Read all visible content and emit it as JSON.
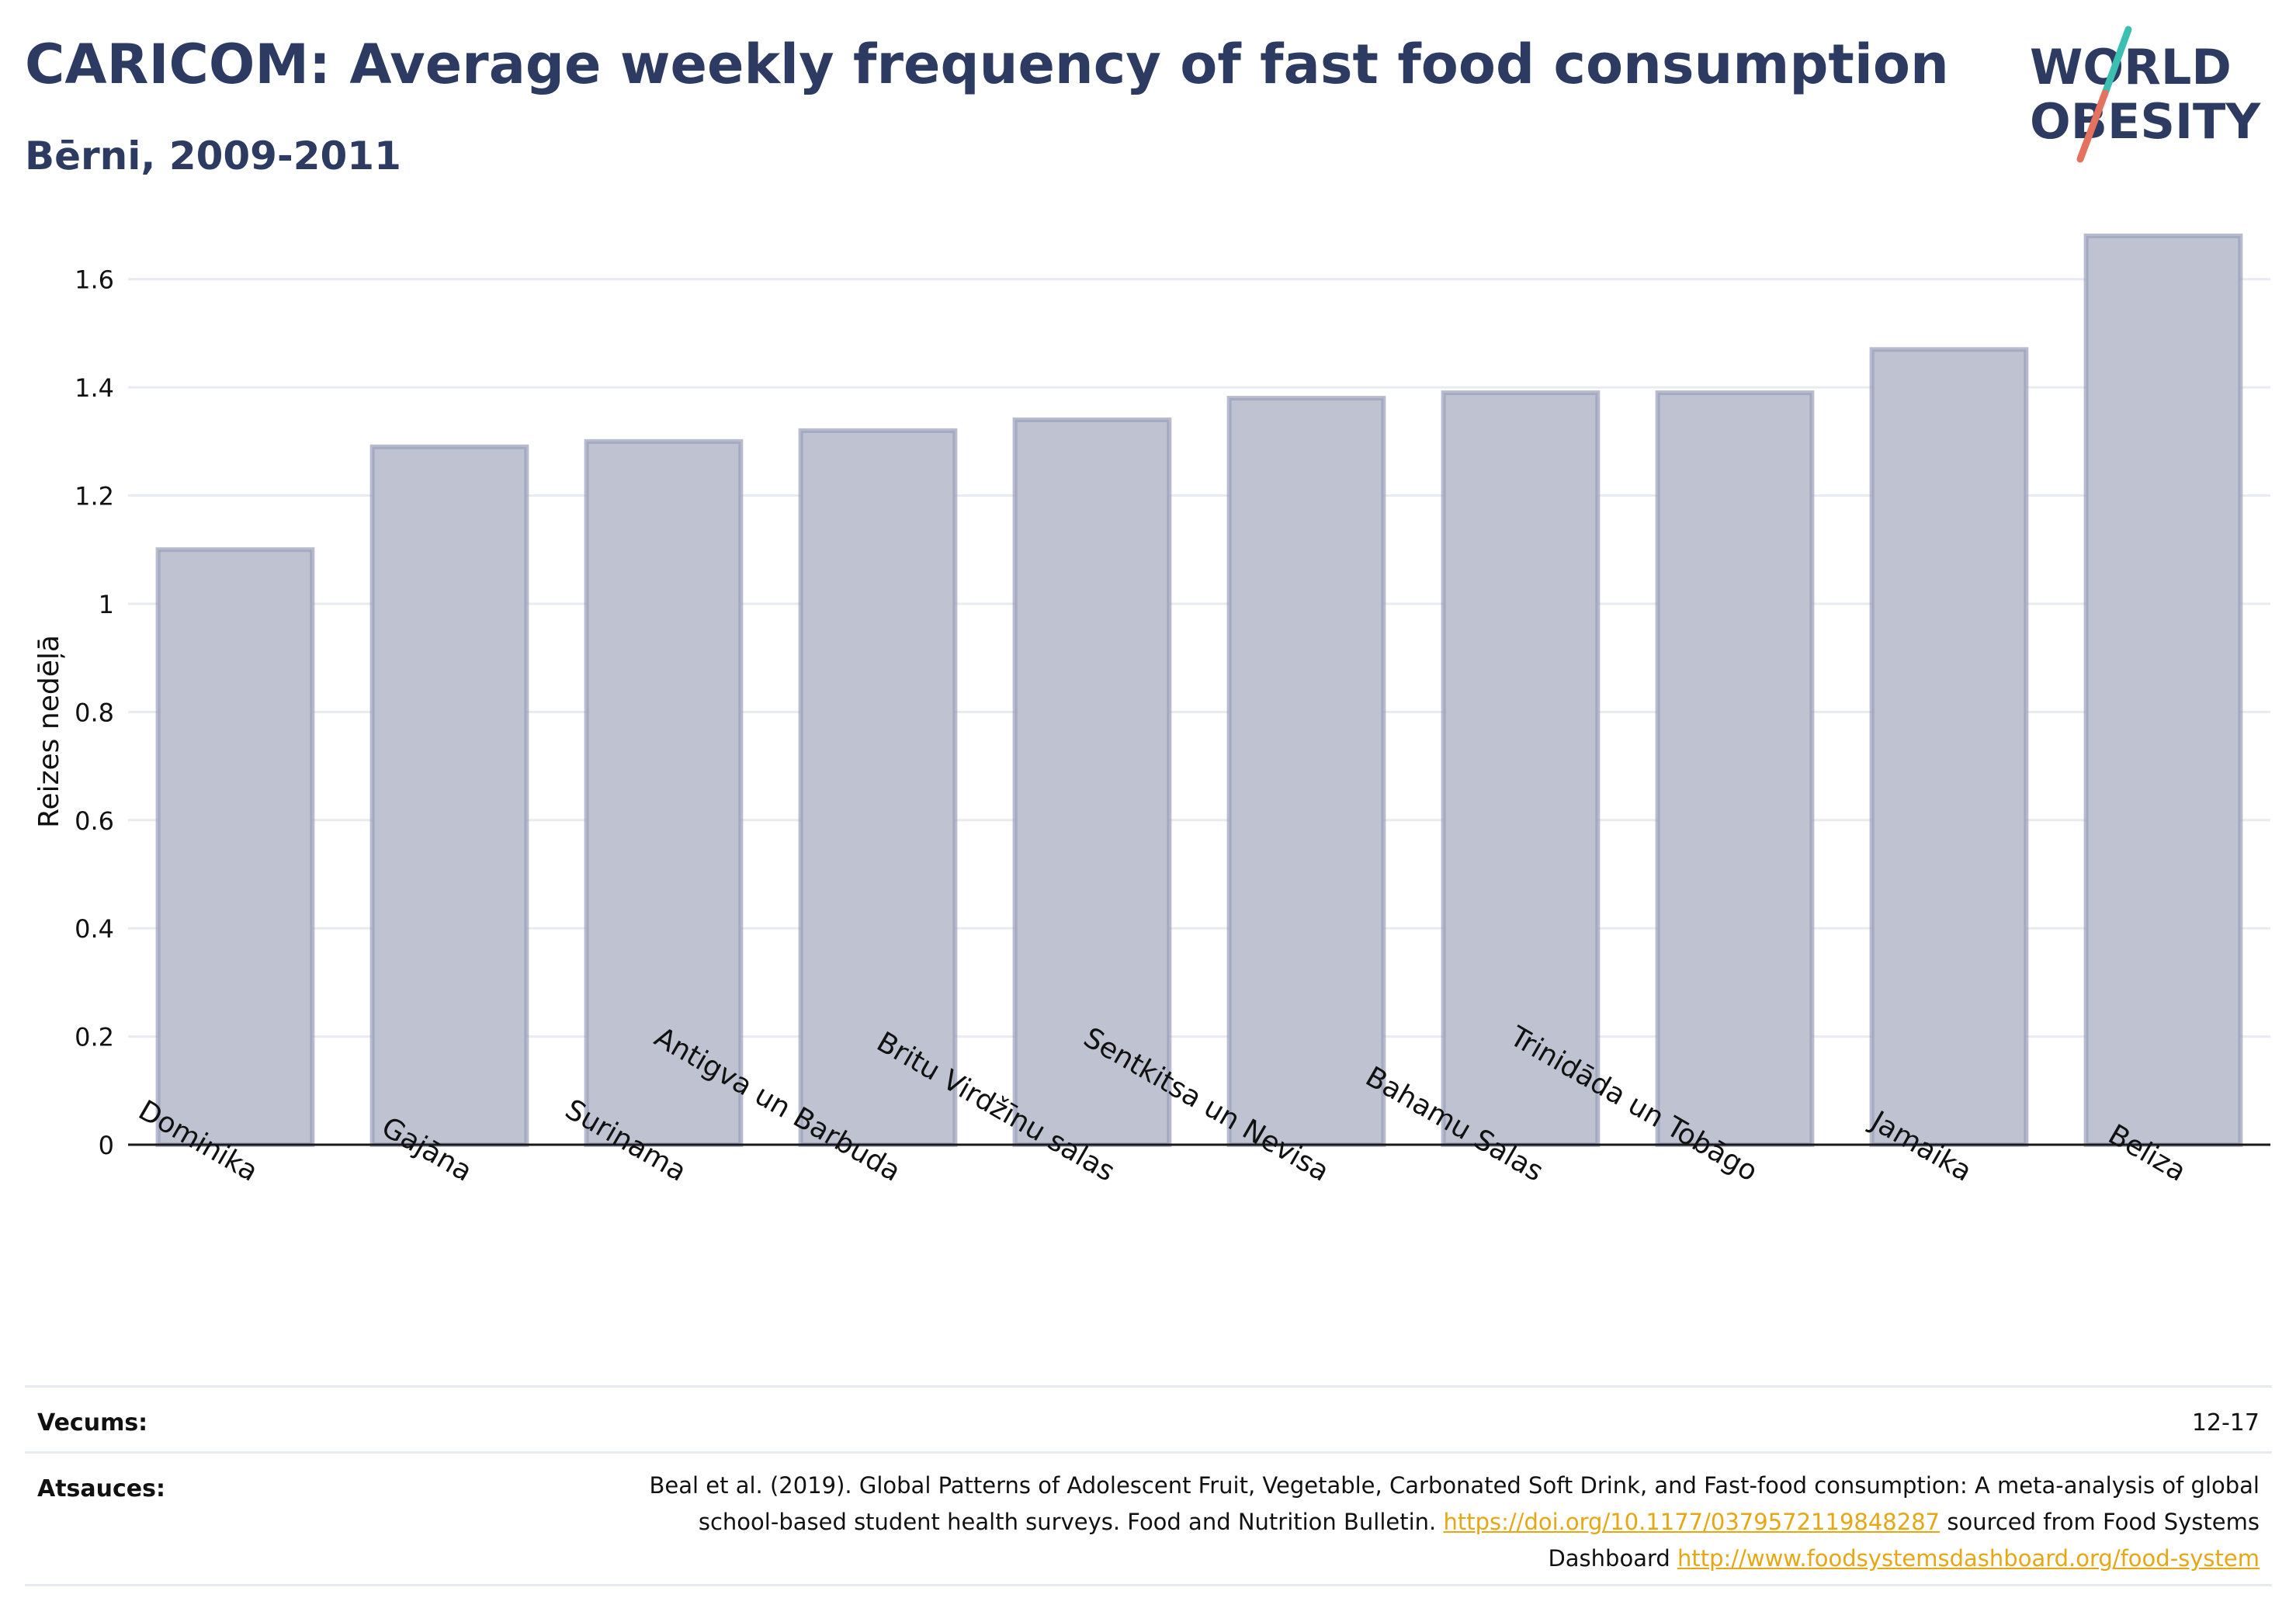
{
  "header": {
    "title": "CARICOM: Average weekly frequency of fast food consumption",
    "subtitle": "Bērni, 2009-2011"
  },
  "logo": {
    "line1": "WORLD",
    "line2": "OBESITY",
    "accent_colors": [
      "#3bbfb1",
      "#e5715f"
    ],
    "text_color": "#2d3a62"
  },
  "chart_data": {
    "type": "bar",
    "title": "CARICOM: Average weekly frequency of fast food consumption",
    "subtitle": "Bērni, 2009-2011",
    "xlabel": "",
    "ylabel": "Reizes nedēļā",
    "ylim": [
      0,
      1.7
    ],
    "yticks": [
      0,
      0.2,
      0.4,
      0.6,
      0.8,
      1,
      1.2,
      1.4,
      1.6
    ],
    "ytick_labels": [
      "0",
      "0.2",
      "0.4",
      "0.6",
      "0.8",
      "1",
      "1.2",
      "1.4",
      "1.6"
    ],
    "grid": true,
    "legend": "none",
    "categories": [
      "Dominika",
      "Gajāna",
      "Surinama",
      "Antigva un Barbuda",
      "Britu Virdžīnu salas",
      "Sentkitsa un Nevisa",
      "Bahamu Salas",
      "Trinidāda un Tobāgo",
      "Jamaika",
      "Beliza"
    ],
    "values": [
      1.1,
      1.29,
      1.3,
      1.32,
      1.34,
      1.38,
      1.39,
      1.39,
      1.47,
      1.68
    ],
    "bar_color": "#bfc2d0",
    "bar_edge_color": "#9aa0b9"
  },
  "footer": {
    "age_label": "Vecums:",
    "age_value": "12-17",
    "source_label": "Atsauces:",
    "source_text_1": "Beal et al. (2019). Global Patterns of Adolescent Fruit, Vegetable, Carbonated Soft Drink, and Fast-food consumption: A meta-analysis of global school-based student health surveys. Food and Nutrition Bulletin. ",
    "source_link_1": "https://doi.org/10.1177/0379572119848287",
    "source_text_2": " sourced from Food Systems Dashboard ",
    "source_link_2": "http://www.foodsystemsdashboard.org/food-system",
    "link_color": "#e6a713"
  }
}
